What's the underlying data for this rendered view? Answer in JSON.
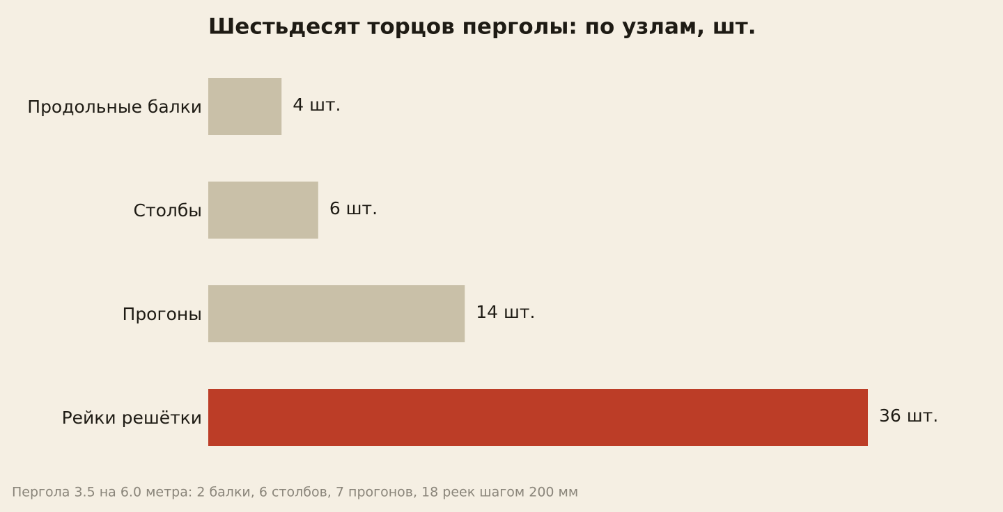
{
  "chart_data": {
    "type": "barh",
    "title": "Шестьдесят торцов перголы: по узлам, шт.",
    "categories": [
      "Продольные балки",
      "Столбы",
      "Прогоны",
      "Рейки решётки"
    ],
    "values": [
      4,
      6,
      14,
      36
    ],
    "value_labels": [
      "4 шт.",
      "6 шт.",
      "14 шт.",
      "36 шт."
    ],
    "colors": [
      "#c9c0a8",
      "#c9c0a8",
      "#c9c0a8",
      "#bc3d27"
    ],
    "caption": "Пергола 3.5 на 6.0 метра: 2 балки, 6 столбов, 7 прогонов, 18 реек шагом 200 мм"
  }
}
